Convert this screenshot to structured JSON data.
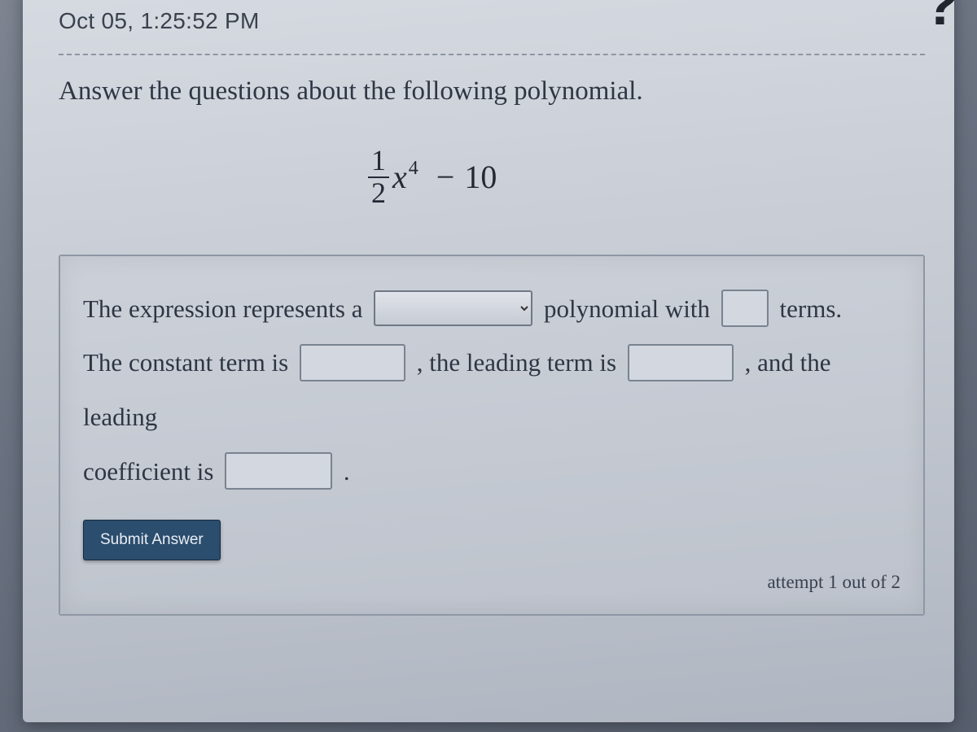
{
  "timestamp": "Oct 05, 1:25:52 PM",
  "help_icon_glyph": "?",
  "prompt": "Answer the questions about the following polynomial.",
  "polynomial": {
    "fraction_num": "1",
    "fraction_den": "2",
    "variable": "x",
    "exponent": "4",
    "minus": "−",
    "constant": "10"
  },
  "sentence": {
    "s1a": "The expression represents a",
    "s1b": "polynomial with",
    "s1c": "terms.",
    "s2a": "The constant term is",
    "s2b": ", the leading term is",
    "s2c": ", and the leading",
    "s3a": "coefficient is",
    "s3b": "."
  },
  "inputs": {
    "degree_select_placeholder": "",
    "terms_value": "",
    "constant_value": "",
    "leading_term_value": "",
    "leading_coeff_value": ""
  },
  "submit_label": "Submit Answer",
  "attempt_text": "attempt 1 out of 2"
}
